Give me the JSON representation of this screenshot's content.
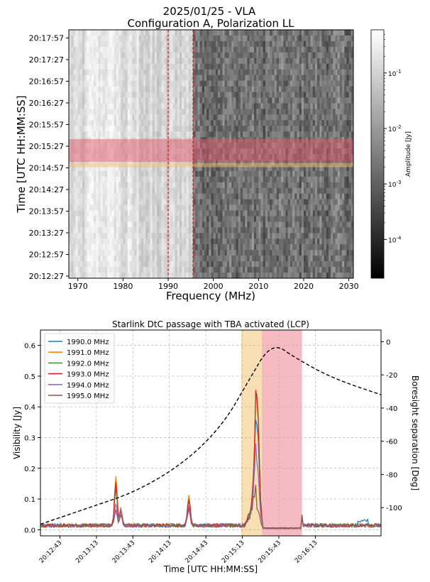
{
  "chart_data": [
    {
      "type": "heatmap",
      "title": "2025/01/25 - VLA",
      "subtitle": "Configuration A, Polarization LL",
      "xlabel": "Frequency (MHz)",
      "ylabel": "Time [UTC HH:MM:SS]",
      "xlim": [
        1968,
        2031
      ],
      "x_ticks": [
        1970,
        1980,
        1990,
        2000,
        2010,
        2020,
        2030
      ],
      "y_ticks": [
        "20:12:27",
        "20:12:57",
        "20:13:27",
        "20:13:57",
        "20:14:27",
        "20:14:57",
        "20:15:27",
        "20:15:57",
        "20:16:27",
        "20:16:57",
        "20:17:27",
        "20:17:57"
      ],
      "colorbar": {
        "label": "Amplitude [Jy]",
        "scale": "log",
        "range": [
          2e-05,
          0.6
        ],
        "tick_values": [
          0.1,
          0.01,
          0.001,
          0.0001
        ],
        "tick_labels": [
          "10^-1",
          "10^-2",
          "10^-3",
          "10^-4"
        ]
      },
      "vlines_mhz": [
        1990,
        1995.5
      ],
      "bands": [
        {
          "name": "active",
          "time_from": "20:15:05",
          "time_to": "20:15:37",
          "color": "#e05a6a"
        },
        {
          "name": "passage",
          "time_from": "20:14:58",
          "time_to": "20:15:04",
          "color": "#f0c070"
        }
      ]
    },
    {
      "type": "line",
      "title": "Starlink DtC passage with TBA activated (LCP)",
      "xlabel": "Time [UTC HH:MM:SS]",
      "ylabel": "Visibility [Jy]",
      "ylabel2": "Boresight separation [Deg]",
      "ylim": [
        -0.02,
        0.65
      ],
      "y2lim": [
        -117,
        7
      ],
      "y_ticks": [
        "0.0",
        "0.1",
        "0.2",
        "0.3",
        "0.4",
        "0.5",
        "0.6"
      ],
      "y2_ticks": [
        "0",
        "-20",
        "-40",
        "-60",
        "-80",
        "-100"
      ],
      "x_ticks": [
        "20:12:43",
        "20:13:13",
        "20:13:43",
        "20:14:13",
        "20:14:43",
        "20:15:13",
        "20:15:43",
        "20:16:13"
      ],
      "xlim_seconds": [
        0,
        280
      ],
      "bands": [
        {
          "from_s": 165,
          "to_s": 182,
          "color": "#f5d49a"
        },
        {
          "from_s": 182,
          "to_s": 215,
          "color": "#f2a3ae"
        }
      ],
      "series": [
        {
          "name": "1990.0 MHz",
          "color": "#1f77b4"
        },
        {
          "name": "1991.0 MHz",
          "color": "#ff7f0e"
        },
        {
          "name": "1992.0 MHz",
          "color": "#2ca02c"
        },
        {
          "name": "1993.0 MHz",
          "color": "#d62728"
        },
        {
          "name": "1994.0 MHz",
          "color": "#9467bd"
        },
        {
          "name": "1995.0 MHz",
          "color": "#8c564b"
        }
      ],
      "peaks": [
        {
          "t": 62,
          "values": [
            0.13,
            0.16,
            0.12,
            0.14,
            0.07,
            0.05
          ]
        },
        {
          "t": 66,
          "values": [
            0.05,
            0.06,
            0.04,
            0.05,
            0.05,
            0.03
          ]
        },
        {
          "t": 122,
          "values": [
            0.09,
            0.1,
            0.08,
            0.09,
            0.06,
            0.05
          ]
        },
        {
          "t": 178,
          "values": [
            0.33,
            0.4,
            0.43,
            0.42,
            0.2,
            0.06
          ]
        }
      ],
      "boresight_curve": [
        {
          "t": 0,
          "deg": -110
        },
        {
          "t": 40,
          "deg": -100
        },
        {
          "t": 80,
          "deg": -90
        },
        {
          "t": 120,
          "deg": -72
        },
        {
          "t": 150,
          "deg": -50
        },
        {
          "t": 170,
          "deg": -25
        },
        {
          "t": 190,
          "deg": 0
        },
        {
          "t": 210,
          "deg": -10
        },
        {
          "t": 240,
          "deg": -22
        },
        {
          "t": 280,
          "deg": -32
        }
      ]
    }
  ]
}
